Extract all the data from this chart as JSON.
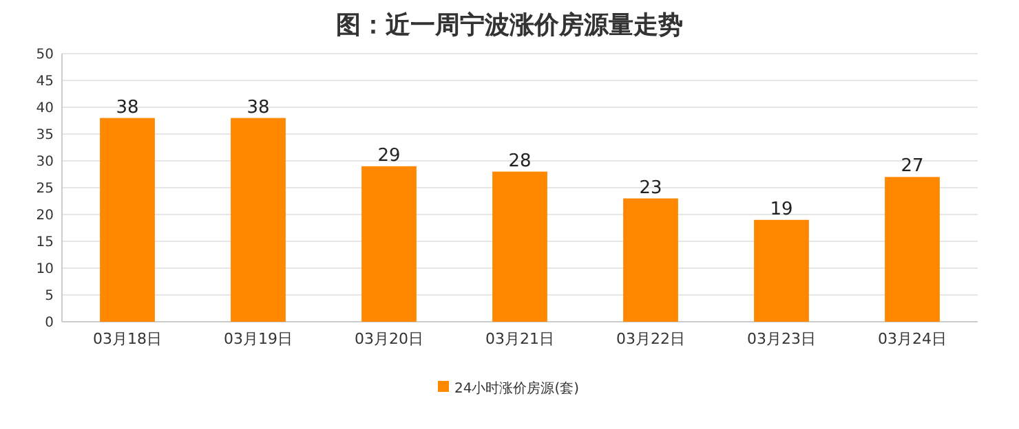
{
  "chart_data": {
    "type": "bar",
    "title": "图：近一周宁波涨价房源量走势",
    "categories": [
      "03月18日",
      "03月19日",
      "03月20日",
      "03月21日",
      "03月22日",
      "03月23日",
      "03月24日"
    ],
    "series": [
      {
        "name": "24小时涨价房源(套)",
        "color": "#ff8800",
        "values": [
          38,
          38,
          29,
          28,
          23,
          19,
          27
        ]
      }
    ],
    "ylim": [
      0,
      50
    ],
    "yticks": [
      0,
      5,
      10,
      15,
      20,
      25,
      30,
      35,
      40,
      45,
      50
    ],
    "grid": "y",
    "legend": "bottom",
    "data_labels": true
  }
}
